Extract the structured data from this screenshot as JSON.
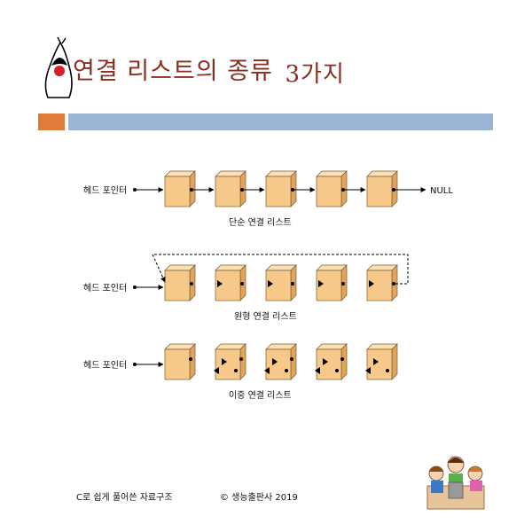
{
  "slide": {
    "title": "연결 리스트의 종류",
    "title_number": "3가지"
  },
  "diagrams": {
    "head_pointer_label": "헤드 포인터",
    "null_label": "NULL",
    "singly_caption": "단순 연결 리스트",
    "circular_caption": "원형 연결 리스트",
    "doubly_caption": "이중 연결 리스트"
  },
  "footer": {
    "book": "C로 쉽게 풀어쓴 자료구조",
    "copyright": "© 생능출판사 2019"
  },
  "colors": {
    "title": "#8a2e1f",
    "accent_orange": "#e07b39",
    "accent_blue": "#9ab4d4",
    "node_front": "#f6c98a",
    "node_side": "#e2a35a",
    "node_top": "#fbe0b4"
  }
}
